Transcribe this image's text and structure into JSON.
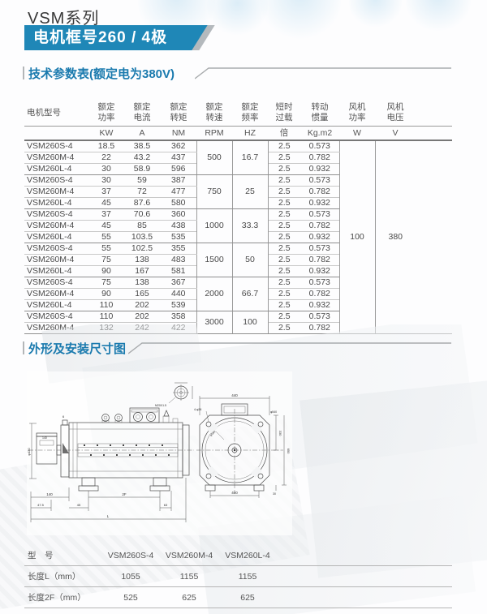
{
  "page": {
    "title": "VSM系列",
    "banner": "电机框号260 / 4极"
  },
  "sections": {
    "tech": {
      "title": "技术参数表(额定电为380V)"
    },
    "outline": {
      "title": "外形及安装尺寸图"
    }
  },
  "colors": {
    "banner_blue": "#1f87b7",
    "heading_blue": "#1a7aae",
    "slash_gray": "#b4b9bd"
  },
  "spec_table": {
    "columns": [
      {
        "l1": "电机型号",
        "l2": "",
        "unit": ""
      },
      {
        "l1": "额定",
        "l2": "功率",
        "unit": "KW"
      },
      {
        "l1": "额定",
        "l2": "电流",
        "unit": "A"
      },
      {
        "l1": "额定",
        "l2": "转矩",
        "unit": "NM"
      },
      {
        "l1": "额定",
        "l2": "转速",
        "unit": "RPM"
      },
      {
        "l1": "额定",
        "l2": "频率",
        "unit": "HZ"
      },
      {
        "l1": "短时",
        "l2": "过载",
        "unit": "倍"
      },
      {
        "l1": "转动",
        "l2": "惯量",
        "unit": "Kg.m2"
      },
      {
        "l1": "风机",
        "l2": "功率",
        "unit": "W"
      },
      {
        "l1": "风机",
        "l2": "电压",
        "unit": "V"
      }
    ],
    "groups": [
      {
        "rpm": "500",
        "hz": "16.7",
        "rows": [
          [
            "VSM260S-4",
            "18.5",
            "38.5",
            "362",
            "2.5",
            "0.573"
          ],
          [
            "VSM260M-4",
            "22",
            "43.2",
            "437",
            "2.5",
            "0.782"
          ],
          [
            "VSM260L-4",
            "30",
            "58.9",
            "596",
            "2.5",
            "0.932"
          ]
        ]
      },
      {
        "rpm": "750",
        "hz": "25",
        "rows": [
          [
            "VSM260S-4",
            "30",
            "59",
            "387",
            "2.5",
            "0.573"
          ],
          [
            "VSM260M-4",
            "37",
            "72",
            "477",
            "2.5",
            "0.782"
          ],
          [
            "VSM260L-4",
            "45",
            "87.6",
            "580",
            "2.5",
            "0.932"
          ]
        ]
      },
      {
        "rpm": "1000",
        "hz": "33.3",
        "rows": [
          [
            "VSM260S-4",
            "37",
            "70.6",
            "360",
            "2.5",
            "0.573"
          ],
          [
            "VSM260M-4",
            "45",
            "85",
            "438",
            "2.5",
            "0.782"
          ],
          [
            "VSM260L-4",
            "55",
            "103.5",
            "535",
            "2.5",
            "0.932"
          ]
        ]
      },
      {
        "rpm": "1500",
        "hz": "50",
        "rows": [
          [
            "VSM260S-4",
            "55",
            "102.5",
            "355",
            "2.5",
            "0.573"
          ],
          [
            "VSM260M-4",
            "75",
            "138",
            "483",
            "2.5",
            "0.782"
          ],
          [
            "VSM260L-4",
            "90",
            "167",
            "581",
            "2.5",
            "0.932"
          ]
        ]
      },
      {
        "rpm": "2000",
        "hz": "66.7",
        "rows": [
          [
            "VSM260S-4",
            "75",
            "138",
            "367",
            "2.5",
            "0.573"
          ],
          [
            "VSM260M-4",
            "90",
            "165",
            "440",
            "2.5",
            "0.782"
          ],
          [
            "VSM260L-4",
            "110",
            "202",
            "539",
            "2.5",
            "0.932"
          ]
        ]
      },
      {
        "rpm": "3000",
        "hz": "100",
        "rows": [
          [
            "VSM260S-4",
            "110",
            "202",
            "358",
            "2.5",
            "0.573"
          ],
          [
            "VSM260M-4",
            "132",
            "242",
            "422",
            "2.5",
            "0.782"
          ]
        ]
      }
    ],
    "fan_power": "100",
    "fan_voltage": "380"
  },
  "dim_table": {
    "rows": [
      {
        "label": "型　号",
        "values": [
          "VSM260S-4",
          "VSM260M-4",
          "VSM260L-4"
        ]
      },
      {
        "label": "长度L（mm）",
        "values": [
          "1055",
          "1155",
          "1155"
        ]
      },
      {
        "label": "长度2F（mm）",
        "values": [
          "525",
          "625",
          "625"
        ]
      }
    ]
  },
  "drawing": {
    "labels": {
      "enc140": "140",
      "shaft_dia": "φ430",
      "top6": "6",
      "d140": "140",
      "d475": "47.5",
      "d45": "45",
      "d2f": "2F",
      "d63": "63",
      "dL": "L",
      "m20": "M20X1.5",
      "holes": "4-φ26",
      "phi560": "φ560",
      "phi540": "φ540",
      "d440": "440",
      "d330": "330",
      "d650": "650",
      "d30": "30",
      "d400": "400"
    }
  }
}
